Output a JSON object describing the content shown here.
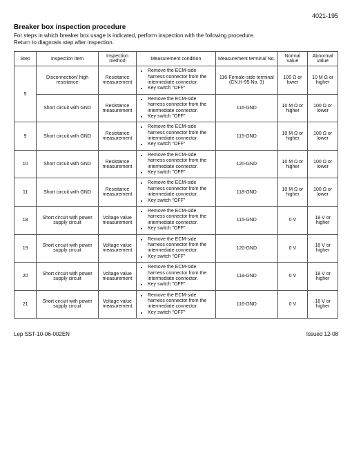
{
  "header": {
    "page_number": "4021-195",
    "title": "Breaker box inspection procedure",
    "intro_line1": "For steps in which breaker box usage is indicated, perform inspection with the following procedure.",
    "intro_line2": "Return to diagnosis step after inspection."
  },
  "columns": {
    "step": "Step",
    "item": "Inspection item",
    "method": "Inspection method",
    "condition": "Measurement condition",
    "terminal": "Measurement terminal No.",
    "normal": "Normal value",
    "abnormal": "Abnormal value"
  },
  "cond_bullets": {
    "b1": "Remove the ECM-side harness connector from the intermediate connector.",
    "b2": "Key switch \"OFF\""
  },
  "rows": [
    {
      "step": "5",
      "rowspan": 2,
      "first": true,
      "item": "Disconnection/ high resistance",
      "method": "Resistance measurement",
      "terminal": "116-Female-side terminal (CN.H-95 No. 3)",
      "normal": "100 Ω or lower",
      "abnormal": "10 M Ω or higher"
    },
    {
      "step": "5",
      "first": false,
      "item": "Short circuit with GND",
      "method": "Resistance measurement",
      "terminal": "116-GND",
      "normal": "10 M Ω or higher",
      "abnormal": "100 Ω or lower"
    },
    {
      "step": "9",
      "rowspan": 1,
      "first": true,
      "item": "Short circuit with GND",
      "method": "Resistance measurement",
      "terminal": "115-GND",
      "normal": "10 M Ω or higher",
      "abnormal": "100 Ω or lower"
    },
    {
      "step": "10",
      "rowspan": 1,
      "first": true,
      "item": "Short circuit with GND",
      "method": "Resistance measurement",
      "terminal": "120-GND",
      "normal": "10 M Ω or higher",
      "abnormal": "100 Ω or lower"
    },
    {
      "step": "11",
      "rowspan": 1,
      "first": true,
      "item": "Short circuit with GND",
      "method": "Resistance measurement",
      "terminal": "118-GND",
      "normal": "10 M Ω or higher",
      "abnormal": "100 Ω or lower"
    },
    {
      "step": "18",
      "rowspan": 1,
      "first": true,
      "item": "Short circuit with power supply circuit",
      "method": "Voltage value measurement",
      "terminal": "115-GND",
      "normal": "0 V",
      "abnormal": "18 V or higher"
    },
    {
      "step": "19",
      "rowspan": 1,
      "first": true,
      "item": "Short circuit with power supply circuit",
      "method": "Voltage value measurement",
      "terminal": "120-GND",
      "normal": "0 V",
      "abnormal": "18 V or higher"
    },
    {
      "step": "20",
      "rowspan": 1,
      "first": true,
      "item": "Short circuit with power supply circuit",
      "method": "Voltage value measurement",
      "terminal": "118-GND",
      "normal": "0 V",
      "abnormal": "18 V or higher"
    },
    {
      "step": "21",
      "rowspan": 1,
      "first": true,
      "item": "Short circuit with power supply circuit",
      "method": "Voltage value measurement",
      "terminal": "116-GND",
      "normal": "0 V",
      "abnormal": "18 V or higher"
    }
  ],
  "footer": {
    "left": "Lep SST-10-06-002EN",
    "right": "Issued 12-08"
  }
}
